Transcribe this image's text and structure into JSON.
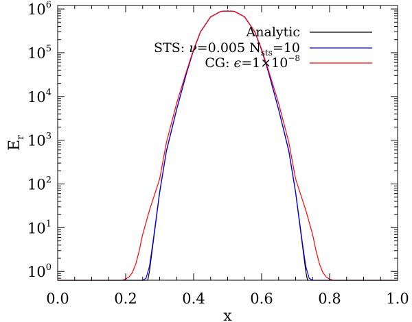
{
  "chart_data": {
    "type": "line",
    "title": "",
    "xlabel": "x",
    "ylabel": {
      "base": "E",
      "sub": "r"
    },
    "xlim": [
      0.0,
      1.0
    ],
    "ylim_log10": [
      -0.2,
      6.08
    ],
    "yscale": "log",
    "grid": false,
    "legend_position": "top-right",
    "x_ticks": [
      {
        "value": 0.0,
        "label": "0.0"
      },
      {
        "value": 0.2,
        "label": "0.2"
      },
      {
        "value": 0.4,
        "label": "0.4"
      },
      {
        "value": 0.6,
        "label": "0.6"
      },
      {
        "value": 0.8,
        "label": "0.8"
      },
      {
        "value": 1.0,
        "label": "1.0"
      }
    ],
    "y_ticks": [
      {
        "value": 1,
        "base": "10",
        "exp": "0"
      },
      {
        "value": 10,
        "base": "10",
        "exp": "1"
      },
      {
        "value": 100,
        "base": "10",
        "exp": "2"
      },
      {
        "value": 1000,
        "base": "10",
        "exp": "3"
      },
      {
        "value": 10000,
        "base": "10",
        "exp": "4"
      },
      {
        "value": 100000,
        "base": "10",
        "exp": "5"
      },
      {
        "value": 1000000,
        "base": "10",
        "exp": "6"
      }
    ],
    "legend": [
      {
        "parts": [
          {
            "t": "Analytic"
          }
        ]
      },
      {
        "parts": [
          {
            "t": "STS:  "
          },
          {
            "t": "ν",
            "italic": true
          },
          {
            "t": "=0.005  N"
          },
          {
            "t": "sts",
            "sub": true
          },
          {
            "t": "=10"
          }
        ]
      },
      {
        "parts": [
          {
            "t": "CG:  "
          },
          {
            "t": "ϵ",
            "italic": true
          },
          {
            "t": "=1×10"
          },
          {
            "t": "−8",
            "sup": true
          }
        ]
      }
    ],
    "series": [
      {
        "name": "Analytic",
        "color": "#000000",
        "x": [
          0.0,
          0.265,
          0.27,
          0.28,
          0.3,
          0.32,
          0.35,
          0.38,
          0.4,
          0.42,
          0.45,
          0.48,
          0.5,
          0.52,
          0.55,
          0.58,
          0.6,
          0.62,
          0.65,
          0.68,
          0.7,
          0.72,
          0.73,
          0.735,
          1.0
        ],
        "y": [
          0.63,
          0.63,
          1.0,
          4.0,
          63,
          560,
          5000,
          36000,
          115000,
          300000,
          660000,
          880000,
          900000,
          880000,
          660000,
          300000,
          115000,
          36000,
          5000,
          560,
          63,
          4.0,
          1.0,
          0.63,
          0.63
        ]
      },
      {
        "name": "STS",
        "color": "#0000ff",
        "x": [
          0.0,
          0.25,
          0.26,
          0.27,
          0.28,
          0.3,
          0.32,
          0.35,
          0.38,
          0.4,
          0.42,
          0.45,
          0.48,
          0.5,
          0.52,
          0.55,
          0.58,
          0.6,
          0.62,
          0.65,
          0.68,
          0.7,
          0.72,
          0.73,
          0.74,
          0.75,
          1.0
        ],
        "y": [
          0.63,
          0.63,
          0.7,
          1.3,
          4.5,
          66,
          580,
          5100,
          36500,
          116000,
          300000,
          660000,
          880000,
          900000,
          880000,
          660000,
          300000,
          116000,
          36500,
          5100,
          580,
          66,
          4.5,
          1.3,
          0.7,
          0.63,
          0.63
        ]
      },
      {
        "name": "CG",
        "color": "#ff0000",
        "x": [
          0.0,
          0.19,
          0.2,
          0.21,
          0.22,
          0.23,
          0.24,
          0.25,
          0.27,
          0.3,
          0.32,
          0.35,
          0.38,
          0.4,
          0.42,
          0.45,
          0.48,
          0.5,
          0.52,
          0.55,
          0.58,
          0.6,
          0.62,
          0.65,
          0.68,
          0.7,
          0.73,
          0.75,
          0.76,
          0.77,
          0.78,
          0.79,
          0.8,
          0.81,
          1.0
        ],
        "y": [
          0.63,
          0.63,
          0.67,
          0.75,
          0.95,
          1.5,
          3.0,
          7.0,
          25,
          130,
          900,
          7000,
          40000,
          120000,
          300000,
          660000,
          880000,
          900000,
          880000,
          660000,
          300000,
          120000,
          40000,
          7000,
          900,
          130,
          25,
          7.0,
          3.0,
          1.5,
          0.95,
          0.75,
          0.67,
          0.63,
          0.63
        ]
      }
    ]
  }
}
